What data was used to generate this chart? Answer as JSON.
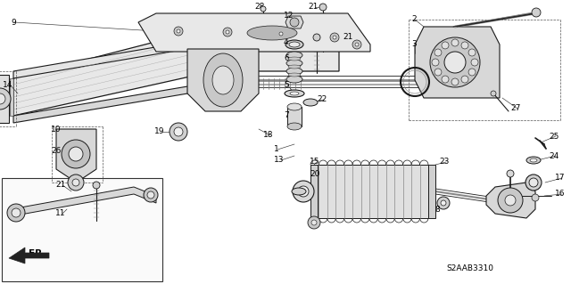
{
  "bg": "#ffffff",
  "fg": "#1a1a1a",
  "catalog": "S2AAB3310",
  "fig_w": 6.4,
  "fig_h": 3.19,
  "dpi": 100
}
